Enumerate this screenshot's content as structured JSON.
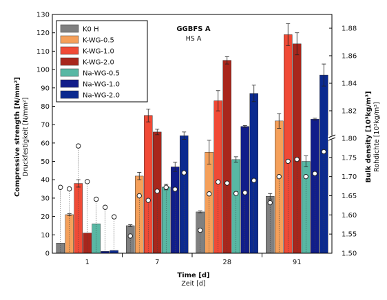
{
  "chart_data": {
    "type": "bar",
    "annotation": {
      "title": "GGBFS A",
      "subtitle": "HS A"
    },
    "xlabel": "Time [d]",
    "xlabel_sub": "Zeit [d]",
    "ylabel": "Compressive strength [N/mm²]",
    "ylabel_sub": "Druckfestigkeit [N/mm²]",
    "y2label": "Bulk density [10³kg/m³]",
    "y2label_sub": "Rohdichte [10³kg/m³]",
    "categories": [
      "1",
      "7",
      "28",
      "91"
    ],
    "ylim": [
      0,
      130
    ],
    "yticks": [
      0,
      10,
      20,
      30,
      40,
      50,
      60,
      70,
      80,
      90,
      100,
      110,
      120,
      130
    ],
    "y2_lower": {
      "range": [
        1.5,
        1.8
      ],
      "ticks": [
        "1.50",
        "1.55",
        "1.60",
        "1.65",
        "1.70",
        "1.75",
        "1.80"
      ]
    },
    "y2_upper": {
      "range": [
        1.8,
        1.89
      ],
      "ticks": [
        "1.82",
        "1.84",
        "1.86",
        "1.88"
      ]
    },
    "series": [
      {
        "name": "K0 H",
        "color": "#808080",
        "values": [
          5.5,
          15,
          22.5,
          31
        ],
        "errors": [
          0,
          0.5,
          0.5,
          1.5
        ],
        "density": [
          1.672,
          1.545,
          1.56,
          1.632
        ]
      },
      {
        "name": "K-WG-0.5",
        "color": "#f5a05a",
        "values": [
          21,
          42,
          55,
          72
        ],
        "errors": [
          0.5,
          2,
          6.5,
          4
        ],
        "density": [
          1.668,
          1.65,
          1.655,
          1.7
        ]
      },
      {
        "name": "K-WG-1.0",
        "color": "#f04a36",
        "values": [
          38,
          75,
          83,
          119
        ],
        "errors": [
          2,
          3.5,
          5.5,
          6
        ],
        "density": [
          1.78,
          1.638,
          1.686,
          1.74
        ]
      },
      {
        "name": "K-WG-2.0",
        "color": "#a8261c",
        "values": [
          11,
          66,
          105,
          114
        ],
        "errors": [
          0,
          1.5,
          2,
          6
        ],
        "density": [
          1.687,
          1.662,
          1.683,
          1.745
        ]
      },
      {
        "name": "Na-WG-0.5",
        "color": "#58b8a4",
        "values": [
          16,
          36,
          51,
          50
        ],
        "errors": [
          0,
          1.5,
          1.5,
          3
        ],
        "density": [
          1.641,
          1.672,
          1.656,
          1.7
        ]
      },
      {
        "name": "Na-WG-1.0",
        "color": "#111d8a",
        "values": [
          1,
          47,
          69,
          73
        ],
        "errors": [
          0,
          2.5,
          0.5,
          0.5
        ],
        "density": [
          1.62,
          1.667,
          1.658,
          1.708
        ]
      },
      {
        "name": "Na-WG-2.0",
        "color": "#0b2a8f",
        "values": [
          1.5,
          64,
          87,
          97
        ],
        "errors": [
          0,
          2,
          4.5,
          6
        ],
        "density": [
          1.595,
          1.71,
          1.69,
          1.765
        ]
      }
    ]
  }
}
